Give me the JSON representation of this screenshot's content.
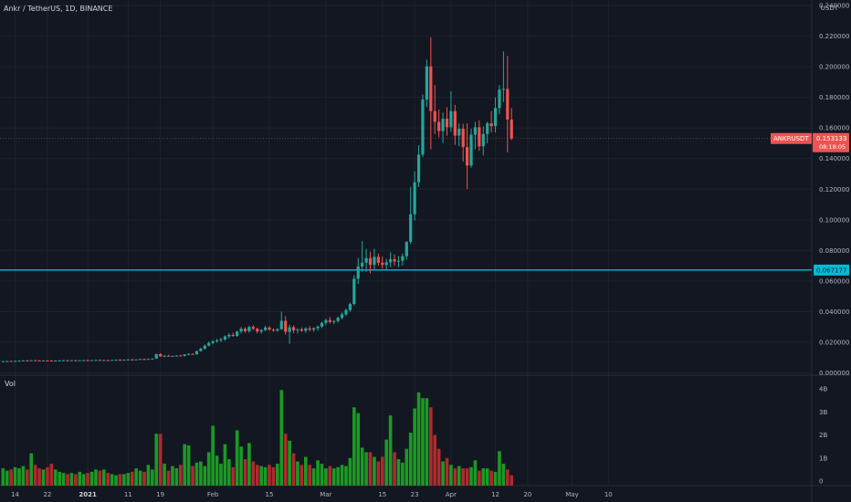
{
  "header": {
    "symbol": "Ankr / TetherUS",
    "interval": "1D",
    "exchange": "BINANCE"
  },
  "price_axis": {
    "unit": "USDT",
    "ticks": [
      "0.240000",
      "0.220000",
      "0.200000",
      "0.180000",
      "0.160000",
      "0.140000",
      "0.120000",
      "0.100000",
      "0.080000",
      "0.060000",
      "0.040000",
      "0.020000",
      "0.000000"
    ]
  },
  "volume_axis": {
    "label": "Vol",
    "ticks": [
      "4B",
      "3B",
      "2B",
      "1B",
      "0"
    ]
  },
  "time_axis": {
    "ticks": [
      "14",
      "22",
      "2021",
      "11",
      "19",
      "Feb",
      "15",
      "Mar",
      "15",
      "23",
      "Apr",
      "12",
      "20",
      "May",
      "10"
    ]
  },
  "markers": {
    "current_price": {
      "symbol": "ANKRUSDT",
      "price": "0.153133",
      "countdown": "08:18:05"
    },
    "horizontal_line": {
      "price": "0.067177"
    }
  },
  "colors": {
    "background": "#131722",
    "up": "#26a69a",
    "down": "#ef5350",
    "volume_up": "#1b9a24",
    "volume_down": "#b02a2e",
    "hline": "#00bcd4",
    "grid": "#1e222d"
  },
  "chart_data": {
    "type": "candlestick",
    "price_range": [
      -0.0015,
      0.2436
    ],
    "volume_range": [
      0,
      4400000000
    ],
    "x_start": "2020-12-11",
    "date_labels": [
      {
        "label": "14",
        "date": "2020-12-14"
      },
      {
        "label": "22",
        "date": "2020-12-22"
      },
      {
        "label": "2021",
        "date": "2021-01-01"
      },
      {
        "label": "11",
        "date": "2021-01-11"
      },
      {
        "label": "19",
        "date": "2021-01-19"
      },
      {
        "label": "Feb",
        "date": "2021-02-01"
      },
      {
        "label": "15",
        "date": "2021-02-15"
      },
      {
        "label": "Mar",
        "date": "2021-03-01"
      },
      {
        "label": "15",
        "date": "2021-03-15"
      },
      {
        "label": "23",
        "date": "2021-03-23"
      },
      {
        "label": "Apr",
        "date": "2021-04-01"
      },
      {
        "label": "12",
        "date": "2021-04-12"
      },
      {
        "label": "20",
        "date": "2021-04-20"
      },
      {
        "label": "May",
        "date": "2021-05-01"
      },
      {
        "label": "10",
        "date": "2021-05-10"
      }
    ],
    "series": [
      {
        "name": "ANKRUSDT",
        "points": [
          [
            0.0075,
            0.0078,
            0.0072,
            0.0076,
            0.55
          ],
          [
            0.0076,
            0.0079,
            0.0073,
            0.0077,
            0.45
          ],
          [
            0.0077,
            0.0079,
            0.0074,
            0.0075,
            0.5
          ],
          [
            0.0075,
            0.008,
            0.0074,
            0.0078,
            0.6
          ],
          [
            0.0078,
            0.0081,
            0.0076,
            0.0079,
            0.55
          ],
          [
            0.0079,
            0.0083,
            0.0077,
            0.0081,
            0.65
          ],
          [
            0.0081,
            0.0084,
            0.0078,
            0.008,
            0.5
          ],
          [
            0.008,
            0.0083,
            0.0078,
            0.0082,
            1.2
          ],
          [
            0.0082,
            0.0085,
            0.0079,
            0.008,
            0.7
          ],
          [
            0.008,
            0.0083,
            0.0078,
            0.0079,
            0.55
          ],
          [
            0.0079,
            0.0082,
            0.0077,
            0.0081,
            0.5
          ],
          [
            0.0081,
            0.0083,
            0.0078,
            0.008,
            0.6
          ],
          [
            0.008,
            0.0082,
            0.0077,
            0.0078,
            0.75
          ],
          [
            0.0078,
            0.0081,
            0.0076,
            0.008,
            0.5
          ],
          [
            0.008,
            0.0082,
            0.0078,
            0.0081,
            0.4
          ],
          [
            0.0081,
            0.0084,
            0.0079,
            0.0082,
            0.35
          ],
          [
            0.0082,
            0.0085,
            0.008,
            0.008,
            0.3
          ],
          [
            0.008,
            0.0083,
            0.0078,
            0.0082,
            0.35
          ],
          [
            0.0082,
            0.0085,
            0.008,
            0.0081,
            0.3
          ],
          [
            0.0081,
            0.0083,
            0.0079,
            0.0082,
            0.4
          ],
          [
            0.0082,
            0.0085,
            0.008,
            0.0083,
            0.3
          ],
          [
            0.0083,
            0.0086,
            0.008,
            0.0081,
            0.35
          ],
          [
            0.0081,
            0.0084,
            0.0079,
            0.0083,
            0.4
          ],
          [
            0.0083,
            0.0086,
            0.0081,
            0.0084,
            0.5
          ],
          [
            0.0084,
            0.0087,
            0.0081,
            0.0082,
            0.45
          ],
          [
            0.0082,
            0.0085,
            0.008,
            0.0083,
            0.5
          ],
          [
            0.0083,
            0.0086,
            0.0081,
            0.0082,
            0.35
          ],
          [
            0.0082,
            0.0085,
            0.008,
            0.0084,
            0.3
          ],
          [
            0.0084,
            0.0088,
            0.0082,
            0.0085,
            0.25
          ],
          [
            0.0085,
            0.0089,
            0.0083,
            0.0084,
            0.3
          ],
          [
            0.0084,
            0.0087,
            0.0082,
            0.0086,
            0.3
          ],
          [
            0.0086,
            0.009,
            0.0084,
            0.0087,
            0.35
          ],
          [
            0.0087,
            0.0091,
            0.0085,
            0.0085,
            0.4
          ],
          [
            0.0085,
            0.0089,
            0.0083,
            0.0088,
            0.55
          ],
          [
            0.0088,
            0.0092,
            0.0086,
            0.009,
            0.45
          ],
          [
            0.009,
            0.0094,
            0.0087,
            0.0089,
            0.4
          ],
          [
            0.0089,
            0.0093,
            0.0087,
            0.0091,
            0.7
          ],
          [
            0.0091,
            0.0095,
            0.0089,
            0.0093,
            0.5
          ],
          [
            0.0093,
            0.0125,
            0.0091,
            0.0122,
            2.05
          ],
          [
            0.0122,
            0.0128,
            0.0104,
            0.0108,
            2.05
          ],
          [
            0.0108,
            0.0115,
            0.0102,
            0.0112,
            0.75
          ],
          [
            0.0112,
            0.0118,
            0.0106,
            0.0109,
            0.45
          ],
          [
            0.0109,
            0.0114,
            0.0104,
            0.0111,
            0.65
          ],
          [
            0.0111,
            0.0116,
            0.0107,
            0.0113,
            0.55
          ],
          [
            0.0113,
            0.0118,
            0.0108,
            0.011,
            0.7
          ],
          [
            0.011,
            0.0122,
            0.0107,
            0.012,
            1.6
          ],
          [
            0.012,
            0.0128,
            0.0115,
            0.0124,
            1.55
          ],
          [
            0.0124,
            0.0128,
            0.0118,
            0.0121,
            0.65
          ],
          [
            0.0121,
            0.0145,
            0.0119,
            0.0142,
            0.8
          ],
          [
            0.0142,
            0.0165,
            0.0138,
            0.0158,
            0.85
          ],
          [
            0.0158,
            0.0185,
            0.0152,
            0.0178,
            0.65
          ],
          [
            0.0178,
            0.0205,
            0.0172,
            0.0195,
            1.25
          ],
          [
            0.0195,
            0.0215,
            0.0187,
            0.0206,
            2.4
          ],
          [
            0.0206,
            0.0222,
            0.0196,
            0.0212,
            1.1
          ],
          [
            0.0212,
            0.023,
            0.02,
            0.0218,
            0.75
          ],
          [
            0.0218,
            0.0245,
            0.0209,
            0.0238,
            1.6
          ],
          [
            0.0238,
            0.026,
            0.0225,
            0.0248,
            0.95
          ],
          [
            0.0248,
            0.0262,
            0.0235,
            0.0241,
            0.6
          ],
          [
            0.0241,
            0.0275,
            0.0236,
            0.027,
            2.2
          ],
          [
            0.027,
            0.03,
            0.0258,
            0.0288,
            1.5
          ],
          [
            0.0288,
            0.0298,
            0.0262,
            0.0272,
            0.95
          ],
          [
            0.0272,
            0.0308,
            0.0262,
            0.03,
            1.65
          ],
          [
            0.03,
            0.0312,
            0.0278,
            0.0288,
            0.85
          ],
          [
            0.0288,
            0.0295,
            0.0258,
            0.027,
            0.7
          ],
          [
            0.027,
            0.0286,
            0.0255,
            0.028,
            0.65
          ],
          [
            0.028,
            0.0308,
            0.0272,
            0.0296,
            0.6
          ],
          [
            0.0296,
            0.0305,
            0.0275,
            0.0282,
            0.7
          ],
          [
            0.0282,
            0.029,
            0.0268,
            0.0276,
            0.6
          ],
          [
            0.0276,
            0.0292,
            0.0268,
            0.0285,
            0.75
          ],
          [
            0.0285,
            0.04,
            0.028,
            0.034,
            3.95
          ],
          [
            0.034,
            0.037,
            0.025,
            0.0268,
            2.05
          ],
          [
            0.0268,
            0.0315,
            0.019,
            0.0298,
            1.75
          ],
          [
            0.0298,
            0.031,
            0.026,
            0.0278,
            1.2
          ],
          [
            0.0278,
            0.0292,
            0.0258,
            0.0284,
            0.85
          ],
          [
            0.0284,
            0.0296,
            0.0268,
            0.0275,
            0.7
          ],
          [
            0.0275,
            0.0299,
            0.0262,
            0.029,
            1.05
          ],
          [
            0.029,
            0.0306,
            0.0271,
            0.0282,
            0.7
          ],
          [
            0.0282,
            0.0298,
            0.0268,
            0.0292,
            0.55
          ],
          [
            0.0292,
            0.031,
            0.0275,
            0.0302,
            0.9
          ],
          [
            0.0302,
            0.0335,
            0.0292,
            0.0326,
            0.75
          ],
          [
            0.0326,
            0.0354,
            0.0312,
            0.0345,
            0.55
          ],
          [
            0.0345,
            0.0365,
            0.0322,
            0.0332,
            0.65
          ],
          [
            0.0332,
            0.0345,
            0.0318,
            0.0338,
            0.55
          ],
          [
            0.0338,
            0.0368,
            0.0328,
            0.036,
            0.6
          ],
          [
            0.036,
            0.0395,
            0.0348,
            0.0382,
            0.7
          ],
          [
            0.0382,
            0.042,
            0.037,
            0.041,
            0.65
          ],
          [
            0.041,
            0.046,
            0.0398,
            0.045,
            1.0
          ],
          [
            0.045,
            0.0638,
            0.044,
            0.0615,
            3.2
          ],
          [
            0.0615,
            0.075,
            0.058,
            0.0695,
            2.95
          ],
          [
            0.0695,
            0.086,
            0.066,
            0.072,
            1.45
          ],
          [
            0.072,
            0.081,
            0.066,
            0.075,
            1.25
          ],
          [
            0.075,
            0.079,
            0.065,
            0.0705,
            1.25
          ],
          [
            0.0705,
            0.081,
            0.067,
            0.0758,
            1.05
          ],
          [
            0.0758,
            0.078,
            0.07,
            0.072,
            0.85
          ],
          [
            0.072,
            0.076,
            0.068,
            0.0705,
            1.05
          ],
          [
            0.0705,
            0.0745,
            0.067,
            0.0722,
            1.8
          ],
          [
            0.0722,
            0.0788,
            0.069,
            0.0742,
            2.85
          ],
          [
            0.0742,
            0.0775,
            0.07,
            0.0728,
            1.25
          ],
          [
            0.0728,
            0.0764,
            0.069,
            0.0732,
            0.95
          ],
          [
            0.0732,
            0.078,
            0.07,
            0.0762,
            0.8
          ],
          [
            0.0762,
            0.0862,
            0.074,
            0.0855,
            1.4
          ],
          [
            0.0855,
            0.1215,
            0.0842,
            0.1036,
            2.1
          ],
          [
            0.1036,
            0.1316,
            0.0996,
            0.1245,
            3.15
          ],
          [
            0.1245,
            0.1488,
            0.1214,
            0.1426,
            3.85
          ],
          [
            0.1426,
            0.1818,
            0.141,
            0.1785,
            3.6
          ],
          [
            0.1785,
            0.2046,
            0.1736,
            0.2002,
            3.6
          ],
          [
            0.2002,
            0.2192,
            0.146,
            0.171,
            3.2
          ],
          [
            0.171,
            0.188,
            0.156,
            0.164,
            2.0
          ],
          [
            0.164,
            0.172,
            0.154,
            0.158,
            1.4
          ],
          [
            0.158,
            0.17,
            0.15,
            0.166,
            0.85
          ],
          [
            0.166,
            0.1735,
            0.155,
            0.1605,
            1.0
          ],
          [
            0.1605,
            0.184,
            0.1575,
            0.171,
            0.7
          ],
          [
            0.171,
            0.175,
            0.149,
            0.155,
            0.55
          ],
          [
            0.155,
            0.163,
            0.148,
            0.1595,
            0.65
          ],
          [
            0.1595,
            0.1628,
            0.138,
            0.1475,
            0.55
          ],
          [
            0.1475,
            0.163,
            0.12,
            0.1355,
            0.55
          ],
          [
            0.1355,
            0.1595,
            0.134,
            0.1556,
            0.6
          ],
          [
            0.1556,
            0.164,
            0.146,
            0.1605,
            0.9
          ],
          [
            0.1605,
            0.165,
            0.145,
            0.148,
            0.45
          ],
          [
            0.148,
            0.161,
            0.142,
            0.156,
            0.55
          ],
          [
            0.156,
            0.164,
            0.15,
            0.163,
            0.55
          ],
          [
            0.163,
            0.171,
            0.157,
            0.1612,
            0.45
          ],
          [
            0.1612,
            0.18,
            0.157,
            0.173,
            0.4
          ],
          [
            0.173,
            0.188,
            0.169,
            0.185,
            1.3
          ],
          [
            0.185,
            0.21,
            0.177,
            0.1855,
            0.75
          ],
          [
            0.1855,
            0.207,
            0.144,
            0.1655,
            0.5
          ],
          [
            0.1655,
            0.173,
            0.152,
            0.1531,
            0.25
          ]
        ]
      }
    ]
  }
}
